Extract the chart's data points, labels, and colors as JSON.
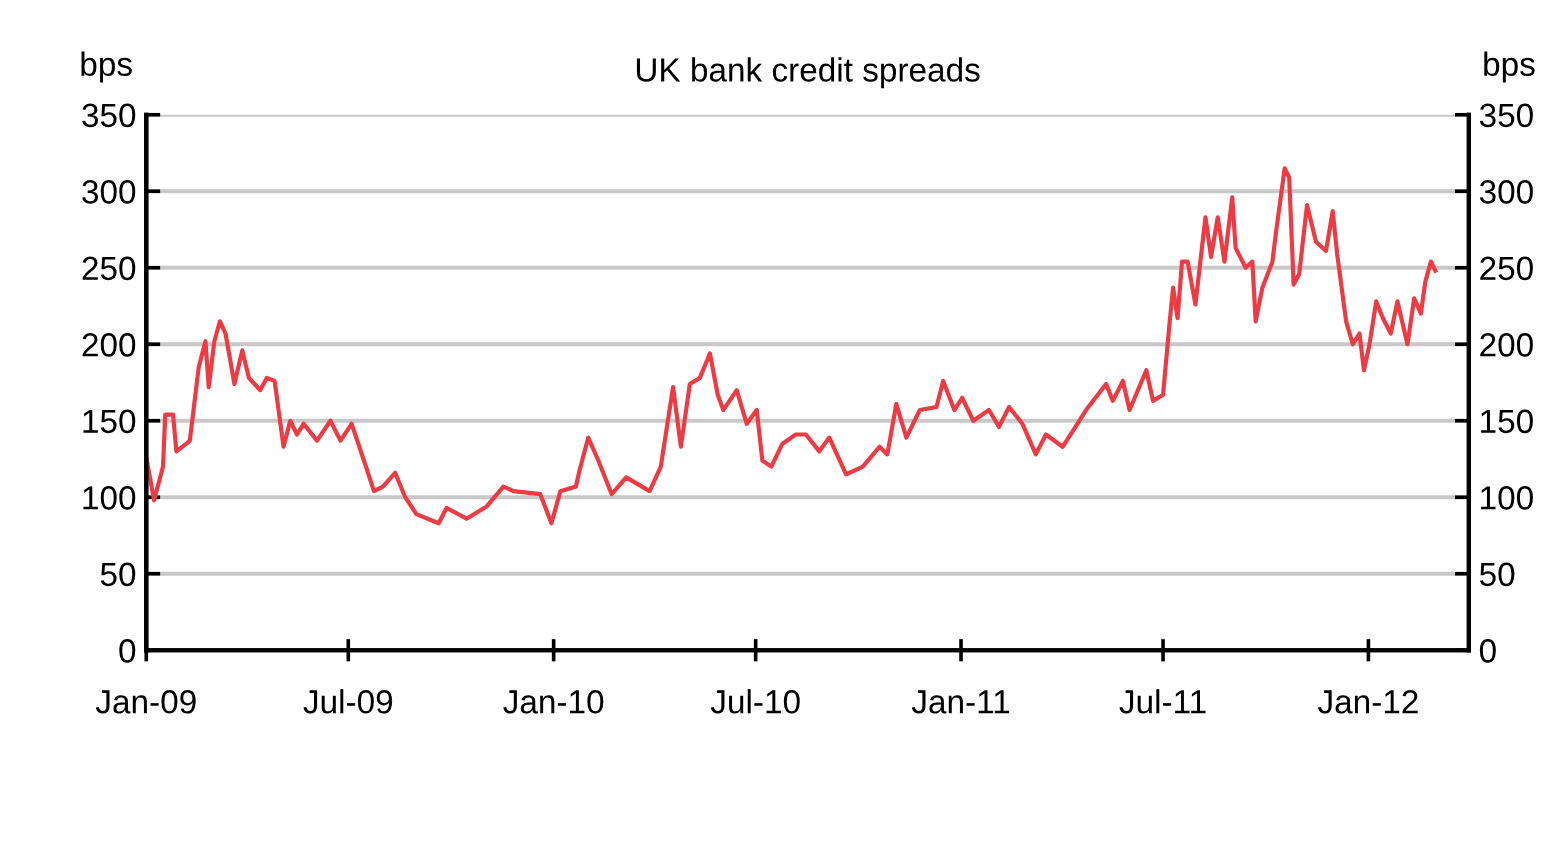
{
  "chart_data": {
    "type": "line",
    "title": "UK bank credit spreads",
    "ylabel": "bps",
    "y2label": "bps",
    "x": [
      "2009-01-01",
      "2009-01-08",
      "2009-01-16",
      "2009-01-18",
      "2009-01-25",
      "2009-01-28",
      "2009-02-06",
      "2009-02-09",
      "2009-02-17",
      "2009-02-23",
      "2009-02-26",
      "2009-03-03",
      "2009-03-08",
      "2009-03-13",
      "2009-03-21",
      "2009-03-28",
      "2009-04-03",
      "2009-04-13",
      "2009-04-19",
      "2009-04-26",
      "2009-05-04",
      "2009-05-10",
      "2009-05-16",
      "2009-05-22",
      "2009-06-03",
      "2009-06-15",
      "2009-06-24",
      "2009-07-04",
      "2009-07-15",
      "2009-07-24",
      "2009-08-01",
      "2009-08-12",
      "2009-08-21",
      "2009-08-31",
      "2009-09-20",
      "2009-09-27",
      "2009-10-15",
      "2009-11-02",
      "2009-11-17",
      "2009-11-26",
      "2009-12-20",
      "2009-12-30",
      "2010-01-07",
      "2010-01-21",
      "2010-01-24",
      "2010-02-01",
      "2010-02-10",
      "2010-02-22",
      "2010-03-07",
      "2010-03-28",
      "2010-04-07",
      "2010-04-18",
      "2010-04-25",
      "2010-05-03",
      "2010-05-12",
      "2010-05-21",
      "2010-05-28",
      "2010-06-02",
      "2010-06-14",
      "2010-06-23",
      "2010-07-02",
      "2010-07-07",
      "2010-07-15",
      "2010-07-25",
      "2010-08-06",
      "2010-08-15",
      "2010-08-27",
      "2010-09-05",
      "2010-09-20",
      "2010-10-05",
      "2010-10-20",
      "2010-10-27",
      "2010-11-04",
      "2010-11-13",
      "2010-11-25",
      "2010-12-10",
      "2010-12-16",
      "2010-12-26",
      "2011-01-02",
      "2011-01-12",
      "2011-01-26",
      "2011-02-04",
      "2011-02-13",
      "2011-02-25",
      "2011-03-09",
      "2011-03-18",
      "2011-04-02",
      "2011-04-11",
      "2011-04-23",
      "2011-05-11",
      "2011-05-17",
      "2011-05-26",
      "2011-06-01",
      "2011-06-16",
      "2011-06-22",
      "2011-07-01",
      "2011-07-07",
      "2011-07-10",
      "2011-07-14",
      "2011-07-18",
      "2011-07-23",
      "2011-07-30",
      "2011-08-08",
      "2011-08-13",
      "2011-08-19",
      "2011-08-25",
      "2011-09-01",
      "2011-09-04",
      "2011-09-13",
      "2011-09-19",
      "2011-09-22",
      "2011-09-28",
      "2011-10-07",
      "2011-10-10",
      "2011-10-18",
      "2011-10-22",
      "2011-10-26",
      "2011-10-31",
      "2011-11-07",
      "2011-11-15",
      "2011-11-24",
      "2011-11-30",
      "2011-12-04",
      "2011-12-12",
      "2011-12-18",
      "2011-12-24",
      "2011-12-28",
      "2012-01-02",
      "2012-01-08",
      "2012-01-14",
      "2012-01-21",
      "2012-01-27",
      "2012-02-05",
      "2012-02-11",
      "2012-02-17",
      "2012-02-21",
      "2012-02-26",
      "2012-03-01"
    ],
    "series": [
      {
        "color": "#ee3a43",
        "values": [
          126,
          98,
          120,
          154,
          154,
          130,
          135,
          137,
          185,
          202,
          172,
          202,
          215,
          207,
          174,
          196,
          178,
          170,
          178,
          176,
          133,
          150,
          141,
          148,
          137,
          150,
          137,
          148,
          124,
          104,
          107,
          116,
          100,
          89,
          83,
          93,
          86,
          94,
          107,
          104,
          102,
          83,
          104,
          107,
          117,
          139,
          124,
          102,
          113,
          104,
          120,
          172,
          133,
          174,
          178,
          194,
          167,
          157,
          170,
          148,
          157,
          124,
          120,
          135,
          141,
          141,
          130,
          139,
          115,
          120,
          133,
          128,
          161,
          139,
          157,
          159,
          176,
          157,
          165,
          150,
          157,
          146,
          159,
          148,
          128,
          141,
          133,
          143,
          157,
          174,
          163,
          176,
          157,
          183,
          163,
          167,
          215,
          237,
          217,
          254,
          254,
          226,
          283,
          257,
          283,
          254,
          296,
          263,
          250,
          254,
          215,
          237,
          254,
          272,
          315,
          309,
          239,
          246,
          291,
          267,
          261,
          287,
          259,
          215,
          200,
          207,
          183,
          200,
          228,
          217,
          207,
          228,
          200,
          230,
          220,
          241,
          254,
          248
        ]
      }
    ],
    "xlim": [
      "2009-01-01",
      "2012-03-31"
    ],
    "xticks": [
      {
        "value": "2009-01-01",
        "label": "Jan-09"
      },
      {
        "value": "2009-07-01",
        "label": "Jul-09"
      },
      {
        "value": "2010-01-01",
        "label": "Jan-10"
      },
      {
        "value": "2010-07-01",
        "label": "Jul-10"
      },
      {
        "value": "2011-01-01",
        "label": "Jan-11"
      },
      {
        "value": "2011-07-01",
        "label": "Jul-11"
      },
      {
        "value": "2012-01-01",
        "label": "Jan-12"
      }
    ],
    "ylim": [
      0,
      350
    ],
    "yticks": [
      0,
      50,
      100,
      150,
      200,
      250,
      300,
      350
    ],
    "y2lim": [
      0,
      350
    ],
    "y2ticks": [
      0,
      50,
      100,
      150,
      200,
      250,
      300,
      350
    ],
    "grid": "y",
    "line_style": "solid",
    "marker": "none"
  }
}
